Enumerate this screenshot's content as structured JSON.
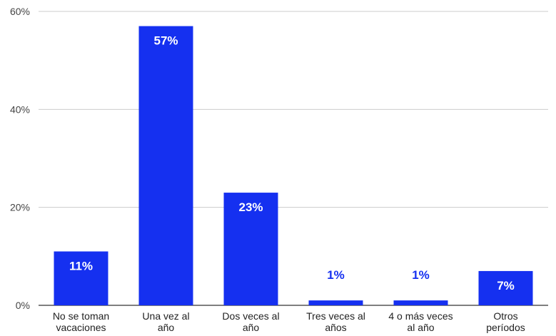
{
  "chart_data": {
    "type": "bar",
    "categories": [
      [
        "No se toman",
        "vacaciones"
      ],
      [
        "Una vez al",
        "año"
      ],
      [
        "Dos veces al",
        "año"
      ],
      [
        "Tres veces al",
        "años"
      ],
      [
        "4 o más veces",
        "al año"
      ],
      [
        "Otros",
        "períodos"
      ]
    ],
    "values": [
      11,
      57,
      23,
      1,
      1,
      7
    ],
    "value_labels": [
      "11%",
      "57%",
      "23%",
      "1%",
      "1%",
      "7%"
    ],
    "ylim": [
      0,
      60
    ],
    "yticks": [
      0,
      20,
      40,
      60
    ],
    "ytick_labels": [
      "0%",
      "20%",
      "40%",
      "60%"
    ],
    "grid": true,
    "colors": {
      "bar": "#1530f0",
      "label_inside": "#ffffff",
      "label_outside": "#1530f0",
      "grid": "#cccccc"
    }
  }
}
